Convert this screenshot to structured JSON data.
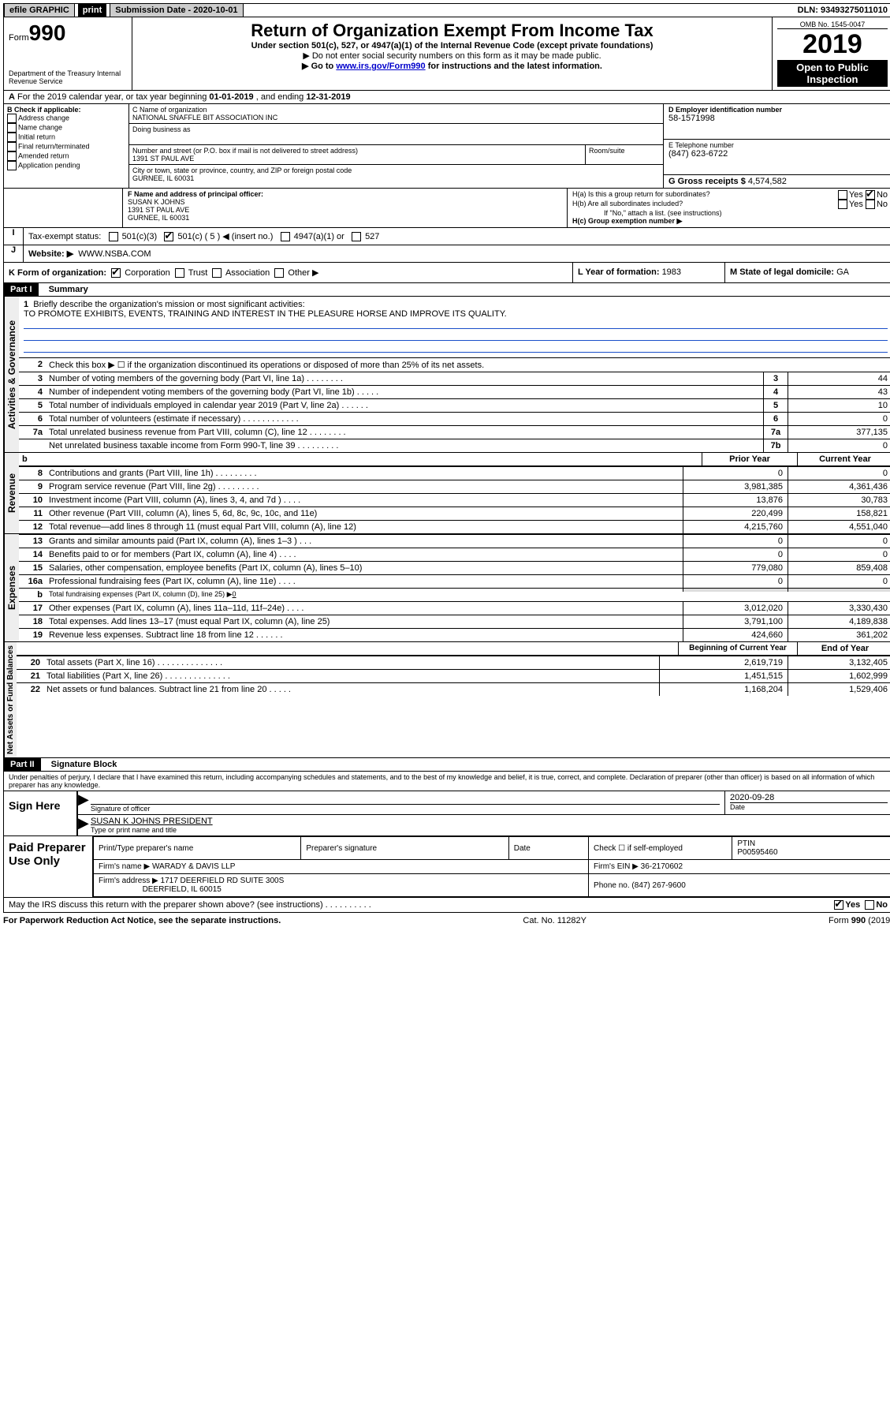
{
  "topbar": {
    "efile": "efile GRAPHIC",
    "print": "print",
    "subdate_label": "Submission Date - ",
    "subdate": "2020-10-01",
    "dln_label": "DLN: ",
    "dln": "93493275011010"
  },
  "header": {
    "form_prefix": "Form",
    "form_num": "990",
    "dept": "Department of the Treasury\nInternal Revenue Service",
    "title": "Return of Organization Exempt From Income Tax",
    "sub1": "Under section 501(c), 527, or 4947(a)(1) of the Internal Revenue Code (except private foundations)",
    "sub2": "▶ Do not enter social security numbers on this form as it may be made public.",
    "sub3_pre": "▶ Go to ",
    "sub3_link": "www.irs.gov/Form990",
    "sub3_post": " for instructions and the latest information.",
    "omb": "OMB No. 1545-0047",
    "year": "2019",
    "open": "Open to Public Inspection"
  },
  "line_a": {
    "text_pre": "For the 2019 calendar year, or tax year beginning ",
    "begin": "01-01-2019",
    "mid": " , and ending ",
    "end": "12-31-2019"
  },
  "box_b": {
    "label": "B Check if applicable:",
    "items": [
      "Address change",
      "Name change",
      "Initial return",
      "Final return/terminated",
      "Amended return",
      "Application pending"
    ]
  },
  "box_c": {
    "name_label": "C Name of organization",
    "name": "NATIONAL SNAFFLE BIT ASSOCIATION INC",
    "dba_label": "Doing business as",
    "dba": "",
    "street_label": "Number and street (or P.O. box if mail is not delivered to street address)",
    "street": "1391 ST PAUL AVE",
    "room_label": "Room/suite",
    "city_label": "City or town, state or province, country, and ZIP or foreign postal code",
    "city": "GURNEE, IL  60031"
  },
  "box_d": {
    "label": "D Employer identification number",
    "value": "58-1571998"
  },
  "box_e": {
    "label": "E Telephone number",
    "value": "(847) 623-6722"
  },
  "box_g": {
    "label": "G Gross receipts $ ",
    "value": "4,574,582"
  },
  "box_f": {
    "label": "F  Name and address of principal officer:",
    "name": "SUSAN K JOHNS",
    "street": "1391 ST PAUL AVE",
    "city": "GURNEE, IL  60031"
  },
  "box_h": {
    "a_label": "H(a)  Is this a group return for subordinates?",
    "a_yes": "Yes",
    "a_no": "No",
    "b_label": "H(b)  Are all subordinates included?",
    "b_note": "If \"No,\" attach a list. (see instructions)",
    "c_label": "H(c)  Group exemption number ▶"
  },
  "box_i": {
    "label": "Tax-exempt status:",
    "c3": "501(c)(3)",
    "c_insert_pre": "501(c) ( ",
    "c_insert_num": "5",
    "c_insert_post": " ) ◀ (insert no.)",
    "a1": "4947(a)(1) or",
    "s527": "527"
  },
  "box_j": {
    "label": "Website: ▶",
    "value": "WWW.NSBA.COM"
  },
  "box_k": {
    "label": "K Form of organization:",
    "corp": "Corporation",
    "trust": "Trust",
    "assoc": "Association",
    "other": "Other ▶"
  },
  "box_l": {
    "label": "L Year of formation: ",
    "value": "1983"
  },
  "box_m": {
    "label": "M State of legal domicile: ",
    "value": "GA"
  },
  "part1": {
    "label": "Part I",
    "title": "Summary"
  },
  "mission": {
    "num": "1",
    "label": "Briefly describe the organization's mission or most significant activities:",
    "text": "TO PROMOTE EXHIBITS, EVENTS, TRAINING AND INTEREST IN THE PLEASURE HORSE AND IMPROVE ITS QUALITY."
  },
  "line2": {
    "num": "2",
    "text": "Check this box ▶ ☐ if the organization discontinued its operations or disposed of more than 25% of its net assets."
  },
  "gov_lines": [
    {
      "n": "3",
      "t": "Number of voting members of the governing body (Part VI, line 1a)   .    .    .    .    .    .    .    .",
      "box": "3",
      "v": "44"
    },
    {
      "n": "4",
      "t": "Number of independent voting members of the governing body (Part VI, line 1b)   .    .    .    .    .",
      "box": "4",
      "v": "43"
    },
    {
      "n": "5",
      "t": "Total number of individuals employed in calendar year 2019 (Part V, line 2a)   .    .    .    .    .    .",
      "box": "5",
      "v": "10"
    },
    {
      "n": "6",
      "t": "Total number of volunteers (estimate if necessary)   .    .    .    .    .    .    .    .    .    .    .    .",
      "box": "6",
      "v": "0"
    },
    {
      "n": "7a",
      "t": "Total unrelated business revenue from Part VIII, column (C), line 12   .    .    .    .    .    .    .    .",
      "box": "7a",
      "v": "377,135"
    },
    {
      "n": "",
      "t": "Net unrelated business taxable income from Form 990-T, line 39   .    .    .    .    .    .    .    .    .",
      "box": "7b",
      "v": "0"
    }
  ],
  "col_headers": {
    "b": "b",
    "prior": "Prior Year",
    "current": "Current Year"
  },
  "rev_lines": [
    {
      "n": "8",
      "t": "Contributions and grants (Part VIII, line 1h)   .    .    .    .    .    .    .    .    .",
      "p": "0",
      "c": "0"
    },
    {
      "n": "9",
      "t": "Program service revenue (Part VIII, line 2g)   .    .    .    .    .    .    .    .    .",
      "p": "3,981,385",
      "c": "4,361,436"
    },
    {
      "n": "10",
      "t": "Investment income (Part VIII, column (A), lines 3, 4, and 7d )   .    .    .    .",
      "p": "13,876",
      "c": "30,783"
    },
    {
      "n": "11",
      "t": "Other revenue (Part VIII, column (A), lines 5, 6d, 8c, 9c, 10c, and 11e)",
      "p": "220,499",
      "c": "158,821"
    },
    {
      "n": "12",
      "t": "Total revenue—add lines 8 through 11 (must equal Part VIII, column (A), line 12)",
      "p": "4,215,760",
      "c": "4,551,040"
    }
  ],
  "exp_lines": [
    {
      "n": "13",
      "t": "Grants and similar amounts paid (Part IX, column (A), lines 1–3 )   .    .    .",
      "p": "0",
      "c": "0"
    },
    {
      "n": "14",
      "t": "Benefits paid to or for members (Part IX, column (A), line 4)   .    .    .    .",
      "p": "0",
      "c": "0"
    },
    {
      "n": "15",
      "t": "Salaries, other compensation, employee benefits (Part IX, column (A), lines 5–10)",
      "p": "779,080",
      "c": "859,408"
    },
    {
      "n": "16a",
      "t": "Professional fundraising fees (Part IX, column (A), line 11e)   .    .    .    .",
      "p": "0",
      "c": "0"
    }
  ],
  "exp_b": {
    "n": "b",
    "t": "Total fundraising expenses (Part IX, column (D), line 25) ▶",
    "v": "0"
  },
  "exp_lines2": [
    {
      "n": "17",
      "t": "Other expenses (Part IX, column (A), lines 11a–11d, 11f–24e)   .    .    .    .",
      "p": "3,012,020",
      "c": "3,330,430"
    },
    {
      "n": "18",
      "t": "Total expenses. Add lines 13–17 (must equal Part IX, column (A), line 25)",
      "p": "3,791,100",
      "c": "4,189,838"
    },
    {
      "n": "19",
      "t": "Revenue less expenses. Subtract line 18 from line 12   .    .    .    .    .    .",
      "p": "424,660",
      "c": "361,202"
    }
  ],
  "na_headers": {
    "begin": "Beginning of Current Year",
    "end": "End of Year"
  },
  "na_lines": [
    {
      "n": "20",
      "t": "Total assets (Part X, line 16)   .    .    .    .    .    .    .    .    .    .    .    .    .    .",
      "p": "2,619,719",
      "c": "3,132,405"
    },
    {
      "n": "21",
      "t": "Total liabilities (Part X, line 26)   .    .    .    .    .    .    .    .    .    .    .    .    .    .",
      "p": "1,451,515",
      "c": "1,602,999"
    },
    {
      "n": "22",
      "t": "Net assets or fund balances. Subtract line 21 from line 20   .    .    .    .    .",
      "p": "1,168,204",
      "c": "1,529,406"
    }
  ],
  "part2": {
    "label": "Part II",
    "title": "Signature Block"
  },
  "perjury": "Under penalties of perjury, I declare that I have examined this return, including accompanying schedules and statements, and to the best of my knowledge and belief, it is true, correct, and complete. Declaration of preparer (other than officer) is based on all information of which preparer has any knowledge.",
  "sign": {
    "here": "Sign Here",
    "sig_label": "Signature of officer",
    "date": "2020-09-28",
    "date_label": "Date",
    "name": "SUSAN K JOHNS PRESIDENT",
    "name_label": "Type or print name and title"
  },
  "paid": {
    "label": "Paid Preparer Use Only",
    "col1": "Print/Type preparer's name",
    "col2": "Preparer's signature",
    "col3": "Date",
    "col4_pre": "Check ☐ if self-employed",
    "ptin_label": "PTIN",
    "ptin": "P00595460",
    "firm_label": "Firm's name      ▶ ",
    "firm": "WARADY & DAVIS LLP",
    "ein_label": "Firm's EIN ▶ ",
    "ein": "36-2170602",
    "addr_label": "Firm's address ▶ ",
    "addr1": "1717 DEERFIELD RD SUITE 300S",
    "addr2": "DEERFIELD, IL  60015",
    "phone_label": "Phone no. ",
    "phone": "(847) 267-9600"
  },
  "discuss": {
    "text": "May the IRS discuss this return with the preparer shown above? (see instructions)   .    .    .    .    .    .    .    .    .    .",
    "yes": "Yes",
    "no": "No"
  },
  "footer": {
    "left": "For Paperwork Reduction Act Notice, see the separate instructions.",
    "mid": "Cat. No. 11282Y",
    "right": "Form 990 (2019)"
  },
  "vert": {
    "gov": "Activities & Governance",
    "rev": "Revenue",
    "exp": "Expenses",
    "na": "Net Assets or Fund Balances"
  }
}
